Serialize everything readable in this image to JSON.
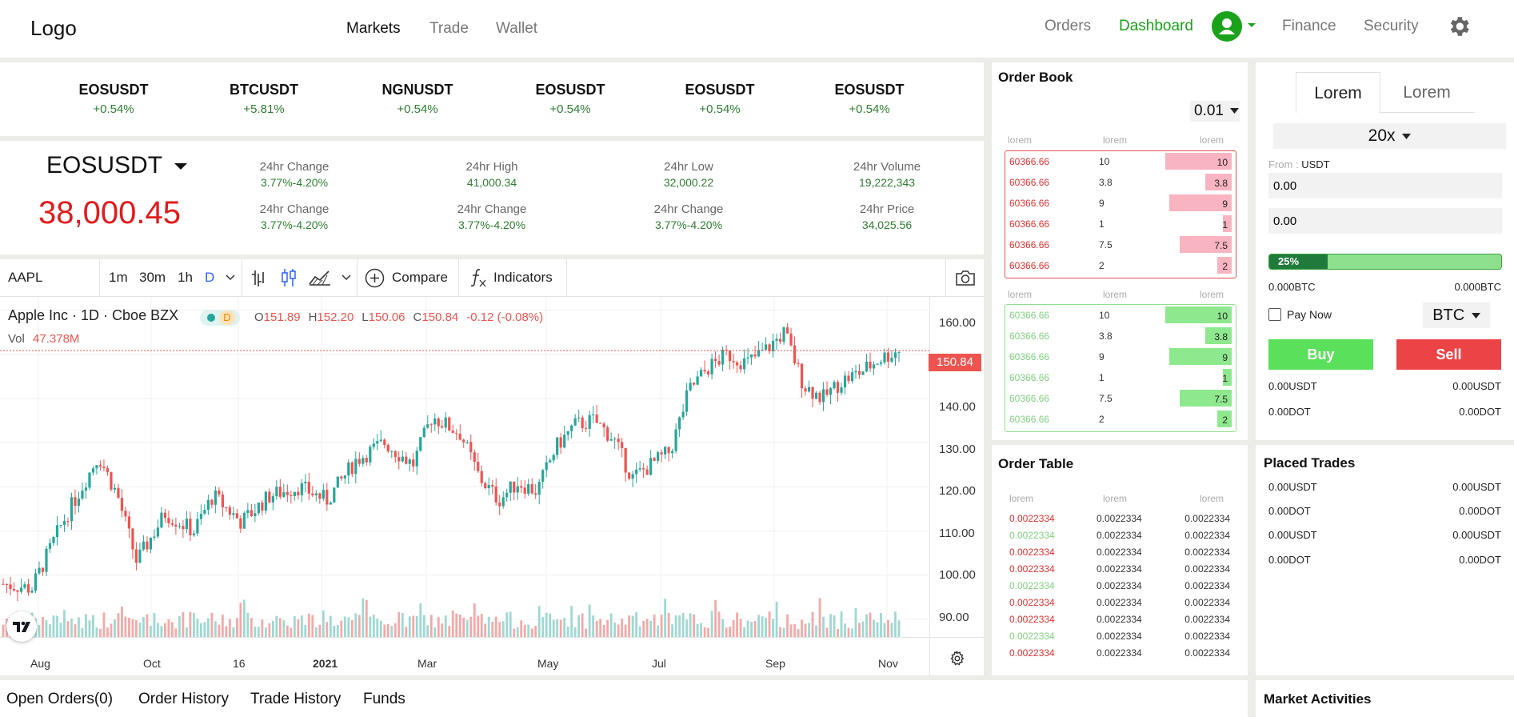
{
  "header": {
    "logo": "Logo",
    "nav": [
      "Markets",
      "Trade",
      "Wallet"
    ],
    "right_links": {
      "orders": "Orders",
      "dashboard": "Dashboard",
      "finance": "Finance",
      "security": "Security"
    },
    "colors": {
      "accent": "#1aa31a"
    }
  },
  "tickers": [
    {
      "symbol": "EOSUSDT",
      "change": "+0.54%"
    },
    {
      "symbol": "BTCUSDT",
      "change": "+5.81%"
    },
    {
      "symbol": "NGNUSDT",
      "change": "+0.54%"
    },
    {
      "symbol": "EOSUSDT",
      "change": "+0.54%"
    },
    {
      "symbol": "EOSUSDT",
      "change": "+0.54%"
    },
    {
      "symbol": "EOSUSDT",
      "change": "+0.54%"
    }
  ],
  "market": {
    "pair": "EOSUSDT",
    "price": "38,000.45",
    "stats": [
      {
        "label": "24hr Change",
        "value": "3.77%-4.20%"
      },
      {
        "label": "24hr High",
        "value": "41,000.34"
      },
      {
        "label": "24hr Low",
        "value": "32,000.22"
      },
      {
        "label": "24hr Volume",
        "value": "19,222,343"
      },
      {
        "label": "24hr Change",
        "value": "3.77%-4.20%"
      },
      {
        "label": "24hr Change",
        "value": "3.77%-4.20%"
      },
      {
        "label": "24hr Change",
        "value": "3.77%-4.20%"
      },
      {
        "label": "24hr Price",
        "value": "34,025.56"
      }
    ]
  },
  "toolbar": {
    "symbol": "AAPL",
    "intervals": [
      "1m",
      "30m",
      "1h",
      "D"
    ],
    "compare": "Compare",
    "indicators": "Indicators"
  },
  "chart_legend": {
    "title": "Apple Inc · 1D · Cboe BZX",
    "badge": "D",
    "o_label": "O",
    "o": "151.89",
    "h_label": "H",
    "h": "152.20",
    "l_label": "L",
    "l": "150.06",
    "c_label": "C",
    "c": "150.84",
    "chg": "-0.12 (-0.08%)",
    "vol_label": "Vol",
    "vol": "47.378M"
  },
  "chart_data": {
    "type": "candlestick",
    "symbol": "AAPL",
    "interval": "1D",
    "y_ticks": [
      "160.00",
      "150.00",
      "140.00",
      "130.00",
      "120.00",
      "110.00",
      "100.00",
      "90.00"
    ],
    "ylim": [
      86,
      163
    ],
    "x_ticks": [
      "Aug",
      "Oct",
      "16",
      "2021",
      "Mar",
      "May",
      "Jul",
      "Sep",
      "Nov"
    ],
    "last_price": "150.84",
    "path": [
      [
        0,
        98
      ],
      [
        3,
        97
      ],
      [
        6,
        111
      ],
      [
        10,
        127
      ],
      [
        12,
        118
      ],
      [
        14,
        103
      ],
      [
        17,
        114
      ],
      [
        20,
        110
      ],
      [
        22,
        118
      ],
      [
        25,
        112
      ],
      [
        28,
        118
      ],
      [
        31,
        120
      ],
      [
        34,
        117
      ],
      [
        37,
        126
      ],
      [
        40,
        130
      ],
      [
        43,
        125
      ],
      [
        45,
        136
      ],
      [
        48,
        132
      ],
      [
        50,
        122
      ],
      [
        52,
        117
      ],
      [
        54,
        121
      ],
      [
        56,
        119
      ],
      [
        58,
        129
      ],
      [
        60,
        134
      ],
      [
        62,
        135
      ],
      [
        64,
        131
      ],
      [
        66,
        122
      ],
      [
        68,
        125
      ],
      [
        70,
        128
      ],
      [
        72,
        142
      ],
      [
        74,
        147
      ],
      [
        76,
        150
      ],
      [
        78,
        148
      ],
      [
        80,
        151
      ],
      [
        82,
        155
      ],
      [
        84,
        143
      ],
      [
        86,
        140
      ],
      [
        88,
        144
      ],
      [
        90,
        146
      ],
      [
        92,
        149
      ],
      [
        94,
        151
      ]
    ],
    "colors": {
      "up": "#26a69a",
      "down": "#ef5350"
    }
  },
  "order_book": {
    "title": "Order Book",
    "precision": "0.01",
    "headers": [
      "lorem",
      "lorem",
      "lorem"
    ],
    "asks": [
      {
        "price": "60366.66",
        "qty": "10",
        "total": "10",
        "fill": 0.55
      },
      {
        "price": "60366.66",
        "qty": "3.8",
        "total": "3.8",
        "fill": 0.22
      },
      {
        "price": "60366.66",
        "qty": "9",
        "total": "9",
        "fill": 0.52
      },
      {
        "price": "60366.66",
        "qty": "1",
        "total": "1",
        "fill": 0.07
      },
      {
        "price": "60366.66",
        "qty": "7.5",
        "total": "7.5",
        "fill": 0.43
      },
      {
        "price": "60366.66",
        "qty": "2",
        "total": "2",
        "fill": 0.12
      }
    ],
    "bids": [
      {
        "price": "60366.66",
        "qty": "10",
        "total": "10",
        "fill": 0.55
      },
      {
        "price": "60366.66",
        "qty": "3.8",
        "total": "3.8",
        "fill": 0.22
      },
      {
        "price": "60366.66",
        "qty": "9",
        "total": "9",
        "fill": 0.52
      },
      {
        "price": "60366.66",
        "qty": "1",
        "total": "1",
        "fill": 0.07
      },
      {
        "price": "60366.66",
        "qty": "7.5",
        "total": "7.5",
        "fill": 0.43
      },
      {
        "price": "60366.66",
        "qty": "2",
        "total": "2",
        "fill": 0.12
      }
    ]
  },
  "order_table": {
    "title": "Order Table",
    "headers": [
      "lorem",
      "lorem",
      "lorem"
    ],
    "rows": [
      {
        "a": "0.0022334",
        "b": "0.0022334",
        "c": "0.0022334",
        "side": "sell"
      },
      {
        "a": "0.0022334",
        "b": "0.0022334",
        "c": "0.0022334",
        "side": "buy"
      },
      {
        "a": "0.0022334",
        "b": "0.0022334",
        "c": "0.0022334",
        "side": "sell"
      },
      {
        "a": "0.0022334",
        "b": "0.0022334",
        "c": "0.0022334",
        "side": "sell"
      },
      {
        "a": "0.0022334",
        "b": "0.0022334",
        "c": "0.0022334",
        "side": "buy"
      },
      {
        "a": "0.0022334",
        "b": "0.0022334",
        "c": "0.0022334",
        "side": "sell"
      },
      {
        "a": "0.0022334",
        "b": "0.0022334",
        "c": "0.0022334",
        "side": "sell"
      },
      {
        "a": "0.0022334",
        "b": "0.0022334",
        "c": "0.0022334",
        "side": "buy"
      },
      {
        "a": "0.0022334",
        "b": "0.0022334",
        "c": "0.0022334",
        "side": "sell"
      }
    ]
  },
  "trade_form": {
    "tabs": [
      "Lorem",
      "Lorem"
    ],
    "leverage": "20x",
    "from_label": "From :",
    "from_currency": "USDT",
    "amount1": "0.00",
    "amount2": "0.00",
    "progress_label": "25%",
    "progress": 0.25,
    "bal_left": "0.000BTC",
    "bal_right": "0.000BTC",
    "pay_now": "Pay Now",
    "currency": "BTC",
    "buy": "Buy",
    "sell": "Sell",
    "usdt_left": "0.00USDT",
    "usdt_right": "0.00USDT",
    "dot_left": "0.00DOT",
    "dot_right": "0.00DOT"
  },
  "placed_trades": {
    "title": "Placed Trades",
    "rows": [
      {
        "l": "0.00USDT",
        "r": "0.00USDT"
      },
      {
        "l": "0.00DOT",
        "r": "0.00DOT"
      },
      {
        "l": "0.00USDT",
        "r": "0.00USDT"
      },
      {
        "l": "0.00DOT",
        "r": "0.00DOT"
      }
    ]
  },
  "bottom_tabs": [
    "Open Orders(0)",
    "Order History",
    "Trade History",
    "Funds"
  ],
  "market_activities": {
    "title": "Market Activities"
  }
}
